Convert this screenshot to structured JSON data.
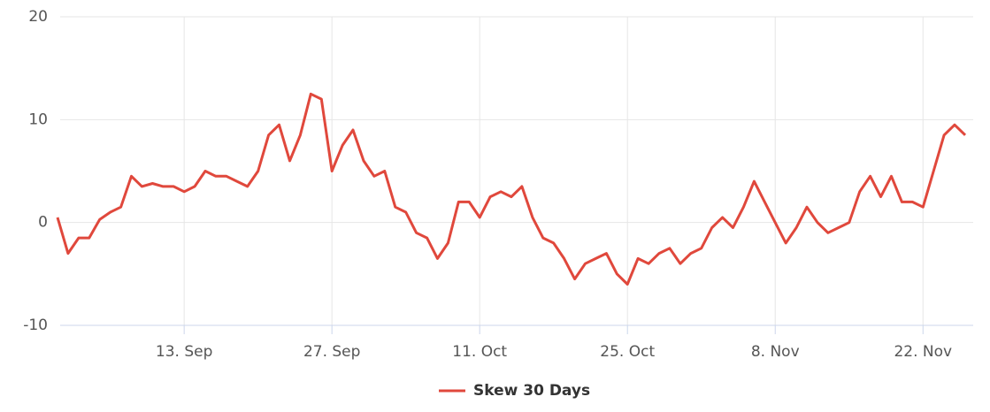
{
  "chart_data": {
    "type": "line",
    "categories": [
      null,
      null,
      null,
      null,
      null,
      null,
      null,
      null,
      null,
      null,
      null,
      null,
      "13. Sep",
      null,
      null,
      null,
      null,
      null,
      null,
      null,
      null,
      null,
      null,
      null,
      null,
      null,
      "27. Sep",
      null,
      null,
      null,
      null,
      null,
      null,
      null,
      null,
      null,
      null,
      null,
      null,
      null,
      "11. Oct",
      null,
      null,
      null,
      null,
      null,
      null,
      null,
      null,
      null,
      null,
      null,
      null,
      null,
      "25. Oct",
      null,
      null,
      null,
      null,
      null,
      null,
      null,
      null,
      null,
      null,
      null,
      null,
      null,
      "8. Nov",
      null,
      null,
      null,
      null,
      null,
      null,
      null,
      null,
      null,
      null,
      null,
      null,
      null,
      "22. Nov",
      null,
      null,
      null,
      null
    ],
    "series": [
      {
        "name": "Skew 30 Days",
        "color": "#e0483c",
        "values": [
          0.5,
          -3,
          -1.5,
          -1.5,
          0.3,
          1,
          1.5,
          4.5,
          3.5,
          3.8,
          3.5,
          3.5,
          3,
          3.5,
          5,
          4.5,
          4.5,
          4,
          3.5,
          5,
          8.5,
          9.5,
          6,
          8.5,
          12.5,
          12,
          5,
          7.5,
          9,
          6,
          4.5,
          5,
          1.5,
          1,
          -1,
          -1.5,
          -3.5,
          -2,
          2,
          2,
          0.5,
          2.5,
          3,
          2.5,
          3.5,
          0.5,
          -1.5,
          -2,
          -3.5,
          -5.5,
          -4,
          -3.5,
          -3,
          -5,
          -6,
          -3.5,
          -4,
          -3,
          -2.5,
          -4,
          -3,
          -2.5,
          -0.5,
          0.5,
          -0.5,
          1.5,
          4,
          2,
          0,
          -2,
          -0.5,
          1.5,
          0,
          -1,
          -0.5,
          0,
          3,
          4.5,
          2.5,
          4.5,
          2,
          2,
          1.5,
          5,
          8.5,
          9.5,
          8.5
        ]
      }
    ],
    "ylim": [
      -10,
      20
    ],
    "yticks": [
      -10,
      0,
      10,
      20
    ],
    "grid": true,
    "legend": "bottom"
  }
}
